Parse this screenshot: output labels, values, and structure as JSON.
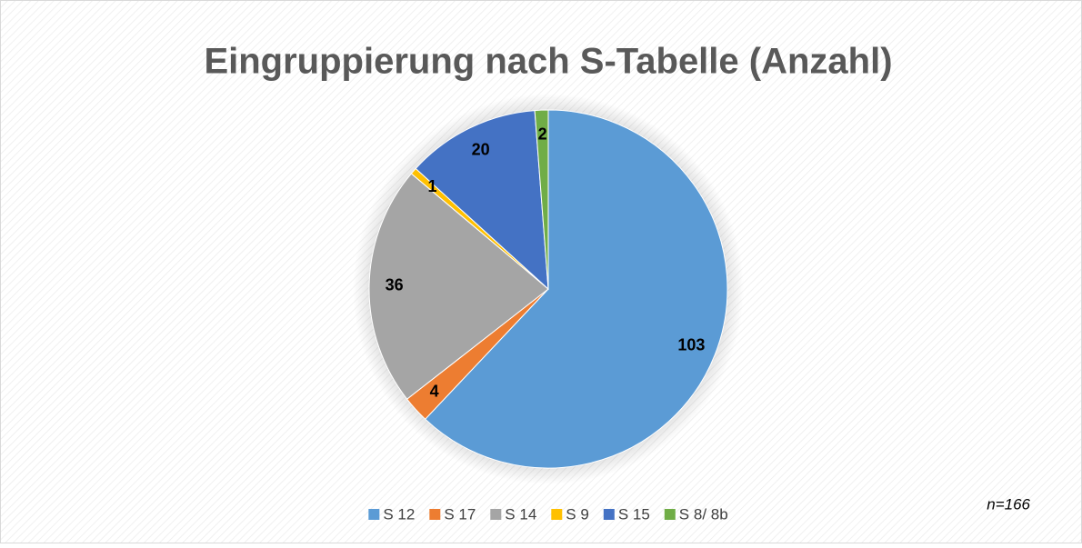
{
  "chart_data": {
    "type": "pie",
    "title": "Eingruppierung nach S-Tabelle (Anzahl)",
    "categories": [
      "S 12",
      "S 17",
      "S 14",
      "S 9",
      "S 15",
      "S 8/ 8b"
    ],
    "values": [
      103,
      4,
      36,
      1,
      20,
      2
    ],
    "colors": [
      "#5b9bd5",
      "#ed7d31",
      "#a5a5a5",
      "#ffc000",
      "#4472c4",
      "#70ad47"
    ],
    "legend": "bottom",
    "annotation": "n=166"
  }
}
